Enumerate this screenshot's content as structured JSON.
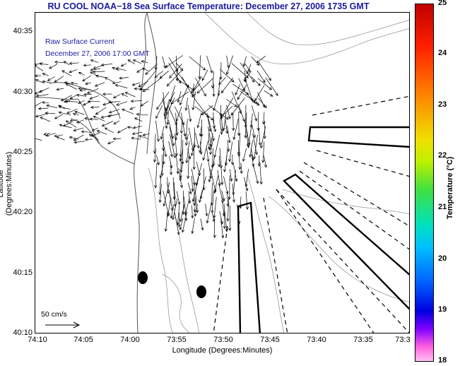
{
  "title": "RU COOL  NOAA−18  Sea Surface Temperature:  December 27, 2006 1735 GMT",
  "legend": {
    "line1": "Raw Surface Current",
    "line2": "December 27, 2006 17:00 GMT",
    "scale_label": "50 cm/s"
  },
  "axes": {
    "xlabel": "Longitude (Degrees:Minutes)",
    "ylabel": "Latitude (Degrees:Minutes)",
    "xticks": [
      "74:10",
      "74:05",
      "74:00",
      "73:55",
      "73:50",
      "73:45",
      "73:40",
      "73:35",
      "73:3"
    ],
    "yticks": [
      "40:35",
      "40:30",
      "40:25",
      "40:20",
      "40:15",
      "40:10"
    ]
  },
  "colorbar": {
    "label": "Temperature (°C)",
    "ticks": [
      "25",
      "24",
      "23",
      "22",
      "21",
      "20",
      "19",
      "18"
    ]
  },
  "colors": {
    "title": "#1a1aa0",
    "legend_text": "#1a1aa0",
    "coastline": "#555555",
    "vectors": "#000000"
  }
}
